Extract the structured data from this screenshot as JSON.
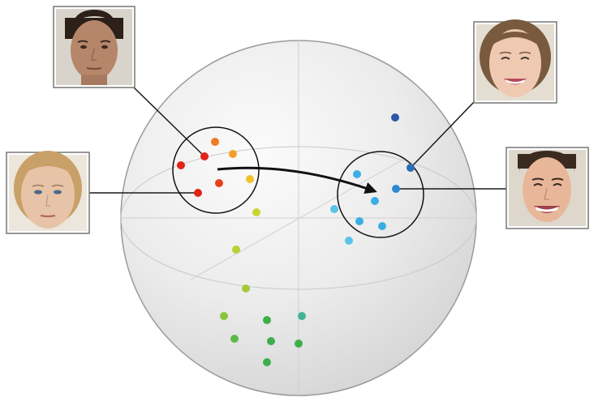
{
  "colors": {
    "red": "#e2231a",
    "red_orange": "#e8401c",
    "orange": "#f07a21",
    "amber": "#f4a028",
    "yellow": "#f2c12e",
    "yellow_green": "#c6d62f",
    "lime": "#a6c93a",
    "light_green": "#8bc53f",
    "green": "#3dae49",
    "teal": "#44b39a",
    "light_blue": "#5bc3ea",
    "sky_blue": "#3aaee4",
    "blue": "#2b8ad1",
    "dark_blue": "#2d57a8",
    "sphere_fill": "#e7e7e7",
    "sphere_edge": "#9a9a9a",
    "guide_line": "#c9c9c9",
    "connector": "#1a1a1a"
  },
  "faces": [
    {
      "id": "neutral-male",
      "expression": "neutral",
      "gender": "male"
    },
    {
      "id": "neutral-female",
      "expression": "neutral",
      "gender": "female"
    },
    {
      "id": "happy-female",
      "expression": "happy",
      "gender": "female"
    },
    {
      "id": "happy-male",
      "expression": "happy",
      "gender": "male"
    }
  ],
  "clusters": [
    {
      "id": "neutral-cluster",
      "label": ""
    },
    {
      "id": "happy-cluster",
      "label": ""
    }
  ]
}
